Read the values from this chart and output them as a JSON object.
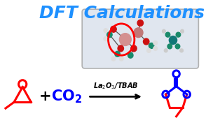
{
  "title": "DFT Calculations",
  "title_color": "#1E90FF",
  "title_fontsize": 18,
  "bg_color": "#ffffff",
  "catalyst_text": "La$_2$O$_3$/TBAB",
  "catalyst_color": "#000000",
  "plus_color": "#000000",
  "co2_color": "#0000FF",
  "epoxide_color": "#FF0000",
  "product_ring_color": "#0000FF",
  "product_carbon_color": "#FF0000",
  "carbonyl_color": "#0000FF",
  "dft_box_color": "#dde4ee",
  "dft_box_edge": "#aaaaaa",
  "red_circle_color": "#FF0000"
}
